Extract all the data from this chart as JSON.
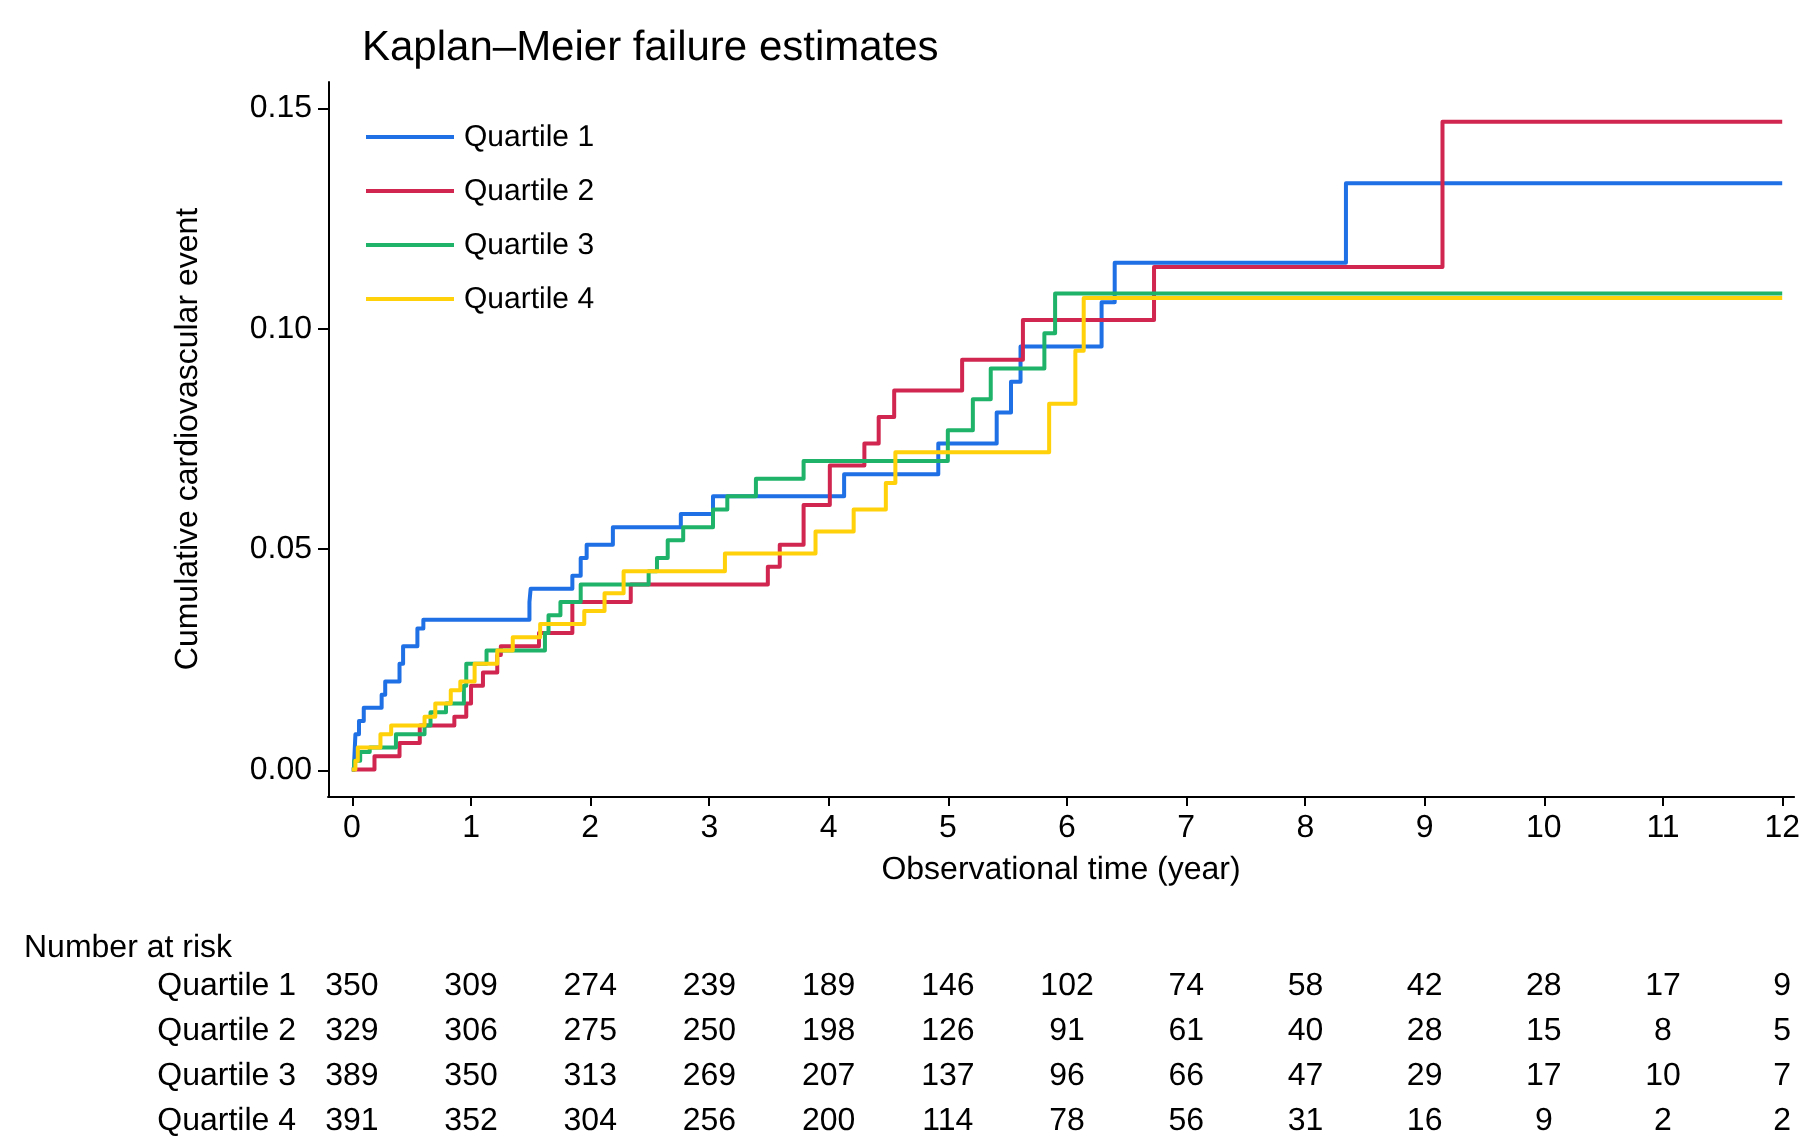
{
  "chart_data": {
    "type": "step",
    "title": "Kaplan–Meier failure estimates",
    "xlabel": "Observational time (year)",
    "ylabel": "Cumulative cardiovascular event",
    "xlim": [
      -0.2,
      12.1
    ],
    "ylim": [
      -0.006,
      0.156
    ],
    "xticks": [
      0,
      1,
      2,
      3,
      4,
      5,
      6,
      7,
      8,
      9,
      10,
      11,
      12
    ],
    "yticks": [
      {
        "value": 0,
        "label": "0.00"
      },
      {
        "value": 0.05,
        "label": "0.05"
      },
      {
        "value": 0.1,
        "label": "0.10"
      },
      {
        "value": 0.15,
        "label": "0.15"
      }
    ],
    "grid": false,
    "legend": "top left",
    "marker": "none",
    "line_style": "solid",
    "series": [
      {
        "name": "Quartile 1",
        "color": "#1f6fe5",
        "x": [
          0,
          0.02,
          0.03,
          0.06,
          0.1,
          0.25,
          0.28,
          0.4,
          0.43,
          0.55,
          0.6,
          1.49,
          1.5,
          1.85,
          1.92,
          1.97,
          2.19,
          2.76,
          3.03,
          4.13,
          4.92,
          5.41,
          5.53,
          5.61,
          6.29,
          6.4,
          8.34,
          12
        ],
        "values": [
          0,
          0.002,
          0.008,
          0.011,
          0.014,
          0.017,
          0.02,
          0.024,
          0.028,
          0.032,
          0.034,
          0.038,
          0.041,
          0.044,
          0.048,
          0.051,
          0.055,
          0.058,
          0.062,
          0.067,
          0.074,
          0.081,
          0.088,
          0.096,
          0.106,
          0.115,
          0.133,
          0.133
        ]
      },
      {
        "name": "Quartile 2",
        "color": "#d0264f",
        "x": [
          0,
          0.19,
          0.4,
          0.57,
          0.86,
          0.96,
          1.0,
          1.1,
          1.22,
          1.25,
          1.57,
          1.85,
          2.34,
          3.49,
          3.59,
          3.79,
          4.01,
          4.3,
          4.42,
          4.55,
          5.12,
          5.63,
          6.73,
          9.15,
          12
        ],
        "values": [
          0,
          0.003,
          0.006,
          0.01,
          0.012,
          0.015,
          0.019,
          0.022,
          0.026,
          0.028,
          0.031,
          0.038,
          0.042,
          0.046,
          0.051,
          0.06,
          0.069,
          0.074,
          0.08,
          0.086,
          0.093,
          0.102,
          0.114,
          0.147,
          0.147
        ]
      },
      {
        "name": "Quartile 3",
        "color": "#1fb36a",
        "x": [
          0,
          0.02,
          0.07,
          0.15,
          0.37,
          0.61,
          0.66,
          0.79,
          0.94,
          0.96,
          1.13,
          1.62,
          1.65,
          1.75,
          1.92,
          2.49,
          2.56,
          2.65,
          2.78,
          3.03,
          3.15,
          3.39,
          3.79,
          5.0,
          5.21,
          5.36,
          5.81,
          5.9,
          12
        ],
        "values": [
          0,
          0.002,
          0.004,
          0.005,
          0.008,
          0.01,
          0.013,
          0.015,
          0.019,
          0.024,
          0.027,
          0.031,
          0.035,
          0.038,
          0.042,
          0.045,
          0.048,
          0.052,
          0.055,
          0.059,
          0.062,
          0.066,
          0.07,
          0.077,
          0.084,
          0.091,
          0.099,
          0.108,
          0.108
        ]
      },
      {
        "name": "Quartile 4",
        "color": "#ffd10a",
        "x": [
          0,
          0.03,
          0.05,
          0.24,
          0.33,
          0.61,
          0.7,
          0.83,
          0.91,
          1.03,
          1.22,
          1.35,
          1.58,
          1.95,
          2.12,
          2.28,
          3.13,
          3.89,
          4.21,
          4.48,
          4.56,
          5.85,
          6.07,
          6.14,
          12
        ],
        "values": [
          0,
          0.002,
          0.005,
          0.008,
          0.01,
          0.012,
          0.015,
          0.018,
          0.02,
          0.024,
          0.027,
          0.03,
          0.033,
          0.036,
          0.04,
          0.045,
          0.049,
          0.054,
          0.059,
          0.065,
          0.072,
          0.083,
          0.095,
          0.107,
          0.107
        ]
      }
    ],
    "annotations": [
      "Number at risk",
      "Quartile 1",
      "350",
      "309",
      "274",
      "239",
      "189",
      "146",
      "102",
      "74",
      "58",
      "42",
      "28",
      "17",
      "9",
      "Quartile 2",
      "329",
      "306",
      "275",
      "250",
      "198",
      "126",
      "91",
      "61",
      "40",
      "28",
      "15",
      "8",
      "5",
      "Quartile 3",
      "389",
      "350",
      "313",
      "269",
      "207",
      "137",
      "96",
      "66",
      "47",
      "29",
      "17",
      "10",
      "7",
      "Quartile 4",
      "391",
      "352",
      "304",
      "256",
      "200",
      "114",
      "78",
      "56",
      "31",
      "16",
      "9",
      "2",
      "2"
    ]
  }
}
